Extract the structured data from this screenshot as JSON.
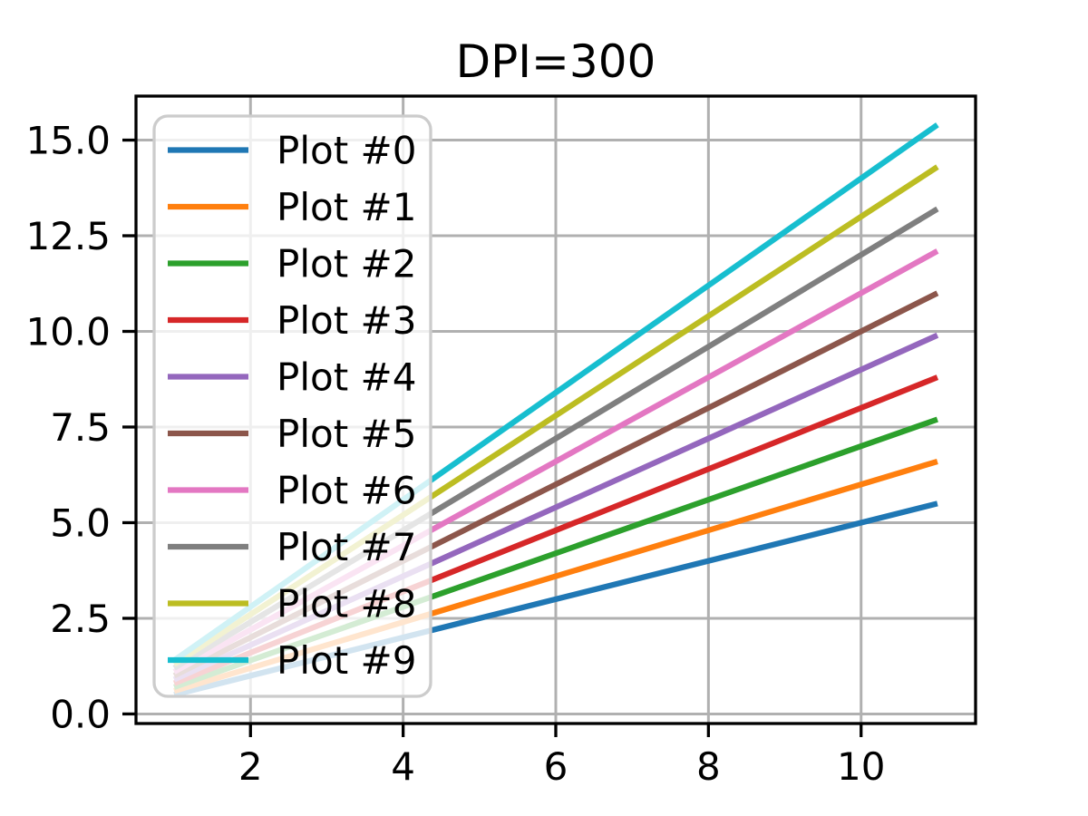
{
  "figure": {
    "title": "DPI=300"
  },
  "chart_data": {
    "type": "line",
    "title": "DPI=300",
    "xlabel": "",
    "ylabel": "",
    "x": [
      1,
      11
    ],
    "series": [
      {
        "name": "Plot #0",
        "color": "#1f77b4",
        "values": [
          0.5,
          5.5
        ]
      },
      {
        "name": "Plot #1",
        "color": "#ff7f0e",
        "values": [
          0.6,
          6.6
        ]
      },
      {
        "name": "Plot #2",
        "color": "#2ca02c",
        "values": [
          0.7,
          7.7
        ]
      },
      {
        "name": "Plot #3",
        "color": "#d62728",
        "values": [
          0.8,
          8.8
        ]
      },
      {
        "name": "Plot #4",
        "color": "#9467bd",
        "values": [
          0.9,
          9.9
        ]
      },
      {
        "name": "Plot #5",
        "color": "#8c564b",
        "values": [
          1.0,
          11.0
        ]
      },
      {
        "name": "Plot #6",
        "color": "#e377c2",
        "values": [
          1.1,
          12.1
        ]
      },
      {
        "name": "Plot #7",
        "color": "#7f7f7f",
        "values": [
          1.2,
          13.2
        ]
      },
      {
        "name": "Plot #8",
        "color": "#bcbd22",
        "values": [
          1.3,
          14.3
        ]
      },
      {
        "name": "Plot #9",
        "color": "#17becf",
        "values": [
          1.4,
          15.4
        ]
      }
    ],
    "xlim": [
      0.5,
      11.5
    ],
    "ylim": [
      -0.25,
      16.15
    ],
    "xticks": [
      2,
      4,
      6,
      8,
      10
    ],
    "xtick_labels": [
      "2",
      "4",
      "6",
      "8",
      "10"
    ],
    "yticks": [
      0,
      2.5,
      5,
      7.5,
      10,
      12.5,
      15
    ],
    "ytick_labels": [
      "0.0",
      "2.5",
      "5.0",
      "7.5",
      "10.0",
      "12.5",
      "15.0"
    ],
    "grid": true,
    "legend": {
      "position": "upper left",
      "labels": [
        "Plot #0",
        "Plot #1",
        "Plot #2",
        "Plot #3",
        "Plot #4",
        "Plot #5",
        "Plot #6",
        "Plot #7",
        "Plot #8",
        "Plot #9"
      ]
    }
  },
  "style": {
    "background": "#ffffff",
    "text_color": "#000000",
    "grid_color": "#b0b0b0",
    "spine_color": "#000000",
    "legend_face_color": "#ffffff",
    "legend_edge_color": "#cccccc",
    "legend_alpha": 0.8
  }
}
